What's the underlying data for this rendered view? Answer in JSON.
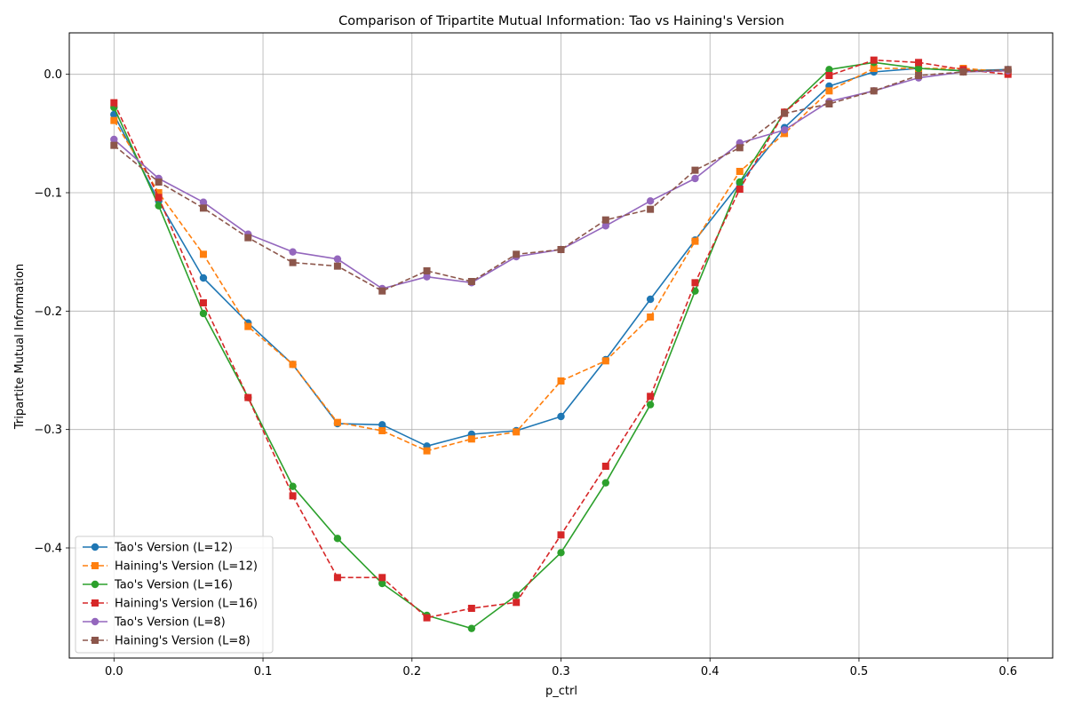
{
  "chart_data": {
    "type": "line",
    "title": "Comparison of Tripartite Mutual Information: Tao vs Haining's Version",
    "xlabel": "p_ctrl",
    "ylabel": "Tripartite Mutual Information",
    "xlim": [
      -0.03,
      0.63
    ],
    "ylim": [
      -0.493,
      0.035
    ],
    "grid": true,
    "legend_position": "lower-left",
    "x_ticks": [
      0.0,
      0.1,
      0.2,
      0.3,
      0.4,
      0.5,
      0.6
    ],
    "x_tick_labels": [
      "0.0",
      "0.1",
      "0.2",
      "0.3",
      "0.4",
      "0.5",
      "0.6"
    ],
    "y_ticks": [
      0.0,
      -0.1,
      -0.2,
      -0.3,
      -0.4
    ],
    "y_tick_labels": [
      "0.0",
      "−0.1",
      "−0.2",
      "−0.3",
      "−0.4"
    ],
    "x": [
      0.0,
      0.03,
      0.06,
      0.09,
      0.12,
      0.15,
      0.18,
      0.21,
      0.24,
      0.27,
      0.3,
      0.33,
      0.36,
      0.39,
      0.42,
      0.45,
      0.48,
      0.51,
      0.54,
      0.57,
      0.6
    ],
    "series": [
      {
        "name": "Tao's Version (L=12)",
        "color": "#1f77b4",
        "line_style": "solid",
        "marker": "circle",
        "values": [
          -0.034,
          -0.107,
          -0.172,
          -0.21,
          -0.245,
          -0.295,
          -0.296,
          -0.314,
          -0.304,
          -0.301,
          -0.289,
          -0.241,
          -0.19,
          -0.14,
          -0.092,
          -0.045,
          -0.01,
          0.002,
          0.005,
          0.003,
          0.004
        ]
      },
      {
        "name": "Haining's Version (L=12)",
        "color": "#ff7f0e",
        "line_style": "dashed",
        "marker": "square",
        "values": [
          -0.039,
          -0.1,
          -0.152,
          -0.213,
          -0.245,
          -0.294,
          -0.301,
          -0.318,
          -0.308,
          -0.302,
          -0.259,
          -0.242,
          -0.205,
          -0.141,
          -0.082,
          -0.05,
          -0.014,
          0.005,
          0.005,
          0.005,
          0.002
        ]
      },
      {
        "name": "Tao's Version (L=16)",
        "color": "#2ca02c",
        "line_style": "solid",
        "marker": "circle",
        "values": [
          -0.028,
          -0.111,
          -0.202,
          -0.273,
          -0.348,
          -0.392,
          -0.43,
          -0.457,
          -0.468,
          -0.44,
          -0.404,
          -0.345,
          -0.279,
          -0.183,
          -0.091,
          -0.032,
          0.004,
          0.01,
          0.005,
          0.003,
          0.003
        ]
      },
      {
        "name": "Haining's Version (L=16)",
        "color": "#d62728",
        "line_style": "dashed",
        "marker": "square",
        "values": [
          -0.024,
          -0.104,
          -0.193,
          -0.273,
          -0.356,
          -0.425,
          -0.425,
          -0.459,
          -0.451,
          -0.446,
          -0.389,
          -0.331,
          -0.272,
          -0.176,
          -0.097,
          -0.032,
          -0.001,
          0.012,
          0.01,
          0.004,
          0.0
        ]
      },
      {
        "name": "Tao's Version (L=8)",
        "color": "#9467bd",
        "line_style": "solid",
        "marker": "circle",
        "values": [
          -0.055,
          -0.088,
          -0.108,
          -0.135,
          -0.15,
          -0.156,
          -0.181,
          -0.171,
          -0.176,
          -0.154,
          -0.148,
          -0.128,
          -0.107,
          -0.088,
          -0.058,
          -0.047,
          -0.023,
          -0.014,
          -0.003,
          0.002,
          0.003
        ]
      },
      {
        "name": "Haining's Version (L=8)",
        "color": "#8c564b",
        "line_style": "dashed",
        "marker": "square",
        "values": [
          -0.06,
          -0.091,
          -0.113,
          -0.138,
          -0.159,
          -0.162,
          -0.183,
          -0.166,
          -0.175,
          -0.152,
          -0.148,
          -0.123,
          -0.114,
          -0.081,
          -0.062,
          -0.033,
          -0.025,
          -0.014,
          -0.001,
          0.002,
          0.004
        ]
      }
    ]
  }
}
